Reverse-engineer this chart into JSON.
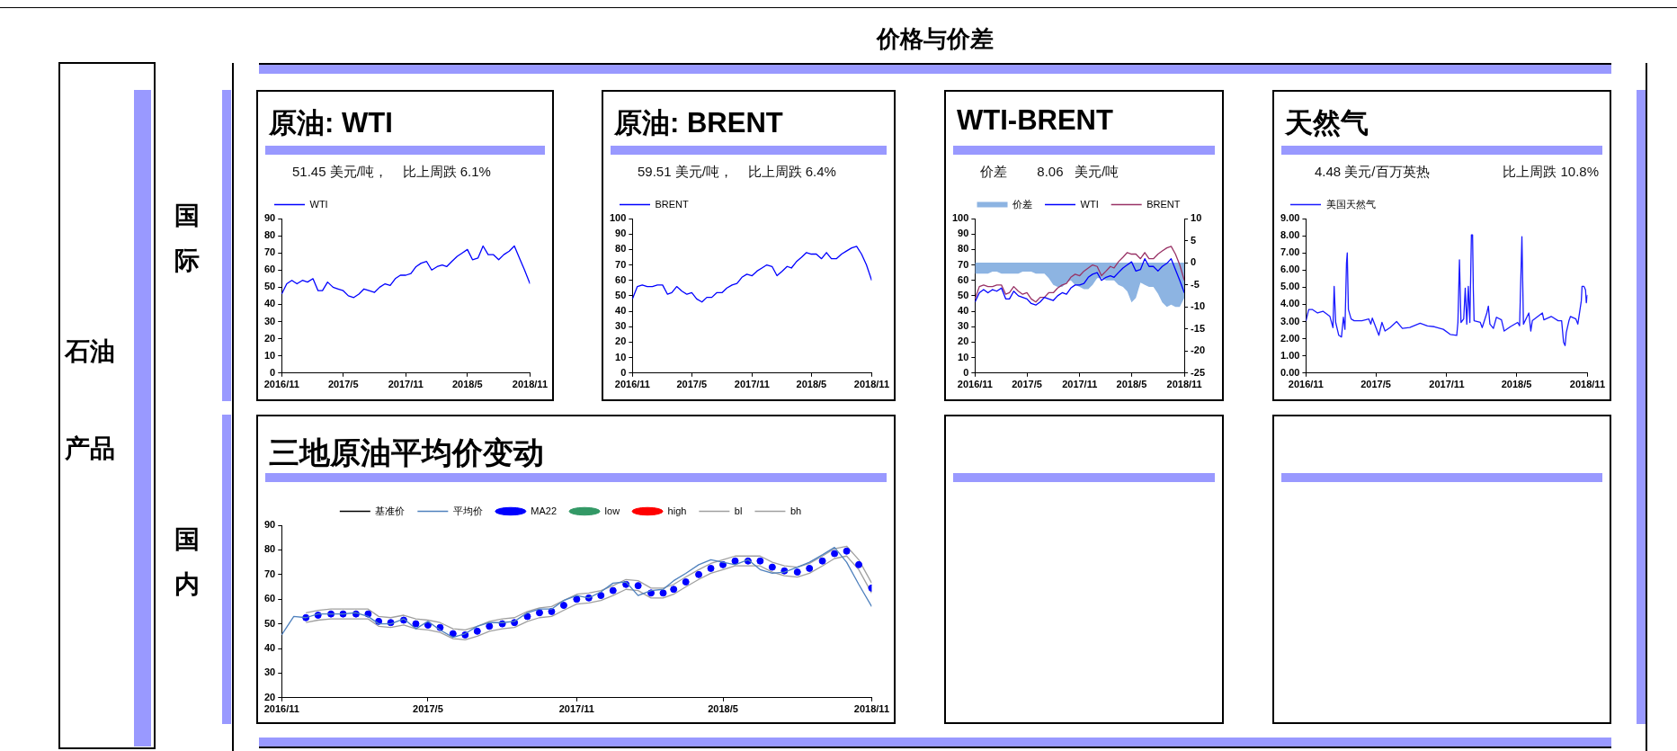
{
  "chart_data": [
    {
      "type": "other",
      "title": "价格与价差",
      "annotations": [
        "石油",
        "产品",
        "国际",
        "国内"
      ]
    },
    {
      "type": "line",
      "title": "原油: WTI",
      "subtitle": "51.45 美元/吨，    比上周跌 6.1%",
      "legend": "top left",
      "x": [
        "2016-11-01",
        "2016-11-16",
        "2016-12-01",
        "2016-12-16",
        "2017-01-01",
        "2017-01-16",
        "2017-02-01",
        "2017-02-16",
        "2017-03-01",
        "2017-03-16",
        "2017-04-01",
        "2017-04-16",
        "2017-05-01",
        "2017-05-16",
        "2017-06-01",
        "2017-06-16",
        "2017-07-01",
        "2017-07-16",
        "2017-08-01",
        "2017-08-16",
        "2017-09-01",
        "2017-09-16",
        "2017-10-01",
        "2017-10-16",
        "2017-11-01",
        "2017-11-16",
        "2017-12-01",
        "2017-12-16",
        "2018-01-01",
        "2018-01-16",
        "2018-02-01",
        "2018-02-16",
        "2018-03-01",
        "2018-03-16",
        "2018-04-01",
        "2018-04-16",
        "2018-05-01",
        "2018-05-16",
        "2018-06-01",
        "2018-06-16",
        "2018-07-01",
        "2018-07-16",
        "2018-08-01",
        "2018-08-16",
        "2018-09-01",
        "2018-09-16",
        "2018-10-01",
        "2018-10-16",
        "2018-11-01"
      ],
      "xlim": [
        "2016-11-01",
        "2018-11-01"
      ],
      "xticks": [
        {
          "value": "2016-11-01",
          "label": "2016/11"
        },
        {
          "value": "2017-05-01",
          "label": "2017/5"
        },
        {
          "value": "2017-11-01",
          "label": "2017/11"
        },
        {
          "value": "2018-05-01",
          "label": "2018/5"
        },
        {
          "value": "2018-11-01",
          "label": "2018/11"
        }
      ],
      "ylim": [
        0,
        90
      ],
      "yticks": [
        0,
        10,
        20,
        30,
        40,
        50,
        60,
        70,
        80,
        90
      ],
      "series": [
        {
          "name": "WTI",
          "color": "#0000ff",
          "values": [
            46,
            52,
            54,
            52,
            54,
            53,
            55,
            48,
            48,
            53,
            50,
            49,
            48,
            45,
            44,
            46,
            49,
            48,
            47,
            50,
            52,
            51,
            55,
            57,
            57,
            58,
            62,
            64,
            65,
            60,
            62,
            63,
            62,
            65,
            68,
            70,
            72,
            66,
            67,
            74,
            69,
            69,
            66,
            69,
            71,
            74,
            67,
            60,
            52
          ]
        }
      ]
    },
    {
      "type": "line",
      "title": "原油: BRENT",
      "subtitle": "59.51 美元/吨，    比上周跌 6.4%",
      "legend": "top left",
      "x": [
        "2016-11-01",
        "2016-11-16",
        "2016-12-01",
        "2016-12-16",
        "2017-01-01",
        "2017-01-16",
        "2017-02-01",
        "2017-02-16",
        "2017-03-01",
        "2017-03-16",
        "2017-04-01",
        "2017-04-16",
        "2017-05-01",
        "2017-05-16",
        "2017-06-01",
        "2017-06-16",
        "2017-07-01",
        "2017-07-16",
        "2017-08-01",
        "2017-08-16",
        "2017-09-01",
        "2017-09-16",
        "2017-10-01",
        "2017-10-16",
        "2017-11-01",
        "2017-11-16",
        "2017-12-01",
        "2017-12-16",
        "2018-01-01",
        "2018-01-16",
        "2018-02-01",
        "2018-02-16",
        "2018-03-01",
        "2018-03-16",
        "2018-04-01",
        "2018-04-16",
        "2018-05-01",
        "2018-05-16",
        "2018-06-01",
        "2018-06-16",
        "2018-07-01",
        "2018-07-16",
        "2018-08-01",
        "2018-08-16",
        "2018-09-01",
        "2018-09-16",
        "2018-10-01",
        "2018-10-16",
        "2018-11-01"
      ],
      "xlim": [
        "2016-11-01",
        "2018-11-01"
      ],
      "xticks": [
        {
          "value": "2016-11-01",
          "label": "2016/11"
        },
        {
          "value": "2017-05-01",
          "label": "2017/5"
        },
        {
          "value": "2017-11-01",
          "label": "2017/11"
        },
        {
          "value": "2018-05-01",
          "label": "2018/5"
        },
        {
          "value": "2018-11-01",
          "label": "2018/11"
        }
      ],
      "ylim": [
        0,
        100
      ],
      "yticks": [
        0,
        10,
        20,
        30,
        40,
        50,
        60,
        70,
        80,
        90,
        100
      ],
      "series": [
        {
          "name": "BRENT",
          "color": "#0000ff",
          "values": [
            48,
            56,
            57,
            56,
            56,
            57,
            57,
            51,
            52,
            56,
            53,
            51,
            52,
            48,
            46,
            49,
            49,
            52,
            52,
            55,
            57,
            58,
            62,
            64,
            63,
            66,
            68,
            70,
            69,
            63,
            66,
            69,
            68,
            72,
            75,
            78,
            77,
            77,
            74,
            78,
            74,
            74,
            77,
            79,
            81,
            82,
            77,
            70,
            60
          ]
        }
      ]
    },
    {
      "type": "line",
      "title": "WTI-BRENT",
      "subtitle": "价差        8.06   美元/吨",
      "legend": "top",
      "x": [
        "2016-11-01",
        "2016-11-16",
        "2016-12-01",
        "2016-12-16",
        "2017-01-01",
        "2017-01-16",
        "2017-02-01",
        "2017-02-16",
        "2017-03-01",
        "2017-03-16",
        "2017-04-01",
        "2017-04-16",
        "2017-05-01",
        "2017-05-16",
        "2017-06-01",
        "2017-06-16",
        "2017-07-01",
        "2017-07-16",
        "2017-08-01",
        "2017-08-16",
        "2017-09-01",
        "2017-09-16",
        "2017-10-01",
        "2017-10-16",
        "2017-11-01",
        "2017-11-16",
        "2017-12-01",
        "2017-12-16",
        "2018-01-01",
        "2018-01-16",
        "2018-02-01",
        "2018-02-16",
        "2018-03-01",
        "2018-03-16",
        "2018-04-01",
        "2018-04-16",
        "2018-05-01",
        "2018-05-16",
        "2018-06-01",
        "2018-06-16",
        "2018-07-01",
        "2018-07-16",
        "2018-08-01",
        "2018-08-16",
        "2018-09-01",
        "2018-09-16",
        "2018-10-01",
        "2018-10-16",
        "2018-11-01"
      ],
      "xlim": [
        "2016-11-01",
        "2018-11-01"
      ],
      "xticks": [
        {
          "value": "2016-11-01",
          "label": "2016/11"
        },
        {
          "value": "2017-05-01",
          "label": "2017/5"
        },
        {
          "value": "2017-11-01",
          "label": "2017/11"
        },
        {
          "value": "2018-05-01",
          "label": "2018/5"
        },
        {
          "value": "2018-11-01",
          "label": "2018/11"
        }
      ],
      "ylim": [
        0,
        100
      ],
      "yticks": [
        0,
        10,
        20,
        30,
        40,
        50,
        60,
        70,
        80,
        90,
        100
      ],
      "y2lim": [
        -25,
        10
      ],
      "y2ticks": [
        -25,
        -20,
        -15,
        -10,
        -5,
        0,
        5,
        10
      ],
      "series": [
        {
          "name": "价差",
          "type": "area",
          "axis": "y2",
          "color": "#8db4e2",
          "values": [
            -2.5,
            -2.5,
            -2.5,
            -2.5,
            -2,
            -2,
            -2.5,
            -2.5,
            -2.5,
            -2.5,
            -2.5,
            -2,
            -2,
            -2,
            -2.5,
            -2.5,
            -2.5,
            -3.5,
            -5,
            -5.5,
            -5.5,
            -4.5,
            -4,
            -5,
            -5.5,
            -6,
            -6,
            -5,
            -3.5,
            -3.5,
            -4,
            -4,
            -4,
            -5,
            -5.5,
            -6.5,
            -9,
            -8,
            -4.5,
            -5,
            -5.5,
            -5.5,
            -7,
            -9,
            -10,
            -9.5,
            -10,
            -10,
            -8
          ]
        },
        {
          "name": "WTI",
          "color": "#0000ff",
          "values": [
            46,
            52,
            54,
            52,
            54,
            53,
            55,
            48,
            48,
            53,
            50,
            49,
            48,
            45,
            44,
            46,
            49,
            48,
            47,
            50,
            52,
            51,
            55,
            57,
            57,
            58,
            62,
            64,
            65,
            60,
            62,
            63,
            62,
            65,
            68,
            70,
            72,
            66,
            67,
            74,
            69,
            69,
            66,
            69,
            71,
            74,
            67,
            60,
            52
          ]
        },
        {
          "name": "BRENT",
          "color": "#993366",
          "values": [
            48,
            56,
            57,
            56,
            56,
            57,
            57,
            51,
            52,
            56,
            53,
            51,
            52,
            48,
            46,
            49,
            49,
            52,
            52,
            55,
            57,
            58,
            62,
            64,
            63,
            66,
            68,
            70,
            69,
            63,
            66,
            69,
            68,
            72,
            75,
            78,
            77,
            77,
            74,
            78,
            74,
            74,
            77,
            79,
            81,
            82,
            77,
            70,
            60
          ]
        }
      ]
    },
    {
      "type": "line",
      "title": "天然气",
      "subtitle": "4.48 美元/百万英热",
      "annotations": [
        "比上周跌 10.8%"
      ],
      "legend": "top left",
      "x": [
        "2016-11-01",
        "2016-11-08",
        "2016-11-18",
        "2016-12-01",
        "2016-12-15",
        "2017-01-02",
        "2017-01-10",
        "2017-01-13",
        "2017-01-17",
        "2017-01-25",
        "2017-02-01",
        "2017-02-06",
        "2017-02-10",
        "2017-02-14",
        "2017-02-16",
        "2017-02-19",
        "2017-02-26",
        "2017-03-06",
        "2017-03-26",
        "2017-04-13",
        "2017-04-18",
        "2017-04-22",
        "2017-05-09",
        "2017-05-17",
        "2017-05-25",
        "2017-06-07",
        "2017-06-24",
        "2017-07-09",
        "2017-07-28",
        "2017-08-24",
        "2017-09-12",
        "2017-09-30",
        "2017-10-23",
        "2017-11-10",
        "2017-11-27",
        "2017-11-30",
        "2017-12-04",
        "2017-12-08",
        "2017-12-15",
        "2017-12-19",
        "2017-12-23",
        "2017-12-27",
        "2017-12-31",
        "2018-01-04",
        "2018-01-07",
        "2018-01-09",
        "2018-01-11",
        "2018-01-27",
        "2018-02-01",
        "2018-02-13",
        "2018-02-17",
        "2018-02-21",
        "2018-03-02",
        "2018-03-10",
        "2018-03-23",
        "2018-03-30",
        "2018-04-15",
        "2018-05-04",
        "2018-05-09",
        "2018-05-15",
        "2018-05-19",
        "2018-06-02",
        "2018-06-07",
        "2018-06-11",
        "2018-07-07",
        "2018-07-11",
        "2018-07-30",
        "2018-08-17",
        "2018-08-26",
        "2018-08-31",
        "2018-09-04",
        "2018-09-07",
        "2018-09-14",
        "2018-09-18",
        "2018-10-02",
        "2018-10-07",
        "2018-10-16",
        "2018-10-18",
        "2018-10-23",
        "2018-10-27",
        "2018-10-29",
        "2018-11-01"
      ],
      "xlim": [
        "2016-11-01",
        "2018-11-01"
      ],
      "xticks": [
        {
          "value": "2016-11-01",
          "label": "2016/11"
        },
        {
          "value": "2017-05-01",
          "label": "2017/5"
        },
        {
          "value": "2017-11-01",
          "label": "2017/11"
        },
        {
          "value": "2018-05-01",
          "label": "2018/5"
        },
        {
          "value": "2018-11-01",
          "label": "2018/11"
        }
      ],
      "ylim": [
        0,
        9
      ],
      "yticks": [
        {
          "value": 0,
          "label": "0.00"
        },
        {
          "value": 1,
          "label": "1.00"
        },
        {
          "value": 2,
          "label": "2.00"
        },
        {
          "value": 3,
          "label": "3.00"
        },
        {
          "value": 4,
          "label": "4.00"
        },
        {
          "value": 5,
          "label": "5.00"
        },
        {
          "value": 6,
          "label": "6.00"
        },
        {
          "value": 7,
          "label": "7.00"
        },
        {
          "value": 8,
          "label": "8.00"
        },
        {
          "value": 9,
          "label": "9.00"
        }
      ],
      "series": [
        {
          "name": "美国天然气",
          "color": "#1a1aff",
          "values": [
            3.05,
            3.7,
            3.7,
            3.5,
            3.6,
            3.3,
            2.65,
            5.05,
            2.95,
            2.2,
            2.1,
            3.25,
            2.55,
            6.4,
            7.0,
            3.7,
            3.15,
            3.05,
            3.05,
            3.15,
            2.85,
            3.2,
            2.2,
            2.95,
            2.45,
            2.65,
            3.0,
            2.6,
            2.65,
            2.9,
            2.75,
            2.7,
            2.55,
            2.25,
            2.2,
            2.95,
            6.6,
            2.95,
            3.15,
            4.95,
            2.85,
            5.05,
            2.95,
            8.05,
            8.05,
            4.85,
            3.05,
            2.95,
            2.65,
            3.5,
            3.9,
            2.85,
            2.6,
            3.25,
            3.1,
            2.45,
            2.7,
            2.95,
            2.75,
            7.95,
            2.85,
            3.5,
            2.45,
            3.05,
            3.5,
            3.1,
            3.3,
            3.05,
            3.05,
            1.8,
            1.6,
            2.35,
            3.05,
            3.3,
            3.15,
            2.85,
            4.2,
            5.05,
            5.05,
            4.85,
            4.1,
            4.55
          ]
        }
      ]
    },
    {
      "type": "line",
      "title": "三地原油平均价变动",
      "legend": "top",
      "x": [
        "2016-11-01",
        "2016-11-16",
        "2016-12-01",
        "2016-12-16",
        "2017-01-01",
        "2017-01-16",
        "2017-02-01",
        "2017-02-16",
        "2017-03-01",
        "2017-03-16",
        "2017-04-01",
        "2017-04-16",
        "2017-05-01",
        "2017-05-16",
        "2017-06-01",
        "2017-06-16",
        "2017-07-01",
        "2017-07-16",
        "2017-08-01",
        "2017-08-16",
        "2017-09-01",
        "2017-09-16",
        "2017-10-01",
        "2017-10-16",
        "2017-11-01",
        "2017-11-16",
        "2017-12-01",
        "2017-12-16",
        "2018-01-01",
        "2018-01-16",
        "2018-02-01",
        "2018-02-16",
        "2018-03-01",
        "2018-03-16",
        "2018-04-01",
        "2018-04-16",
        "2018-05-01",
        "2018-05-16",
        "2018-06-01",
        "2018-06-16",
        "2018-07-01",
        "2018-07-16",
        "2018-08-01",
        "2018-08-16",
        "2018-09-01",
        "2018-09-16",
        "2018-10-01",
        "2018-10-16",
        "2018-11-01"
      ],
      "xlim": [
        "2016-11-01",
        "2018-11-01"
      ],
      "xticks": [
        {
          "value": "2016-11-01",
          "label": "2016/11"
        },
        {
          "value": "2017-05-01",
          "label": "2017/5"
        },
        {
          "value": "2017-11-01",
          "label": "2017/11"
        },
        {
          "value": "2018-05-01",
          "label": "2018/5"
        },
        {
          "value": "2018-11-01",
          "label": "2018/11"
        }
      ],
      "ylim": [
        20,
        90
      ],
      "yticks": [
        20,
        30,
        40,
        50,
        60,
        70,
        80,
        90
      ],
      "series": [
        {
          "name": "基准价",
          "color": "#000000",
          "values": [
            null,
            null,
            null,
            null,
            null,
            null,
            null,
            null,
            null,
            null,
            null,
            null,
            null,
            null,
            null,
            null,
            null,
            null,
            null,
            null,
            null,
            null,
            null,
            null,
            null,
            null,
            null,
            null,
            null,
            null,
            null,
            null,
            null,
            null,
            null,
            null,
            null,
            null,
            null,
            null,
            null,
            null,
            null,
            null,
            null,
            null,
            null,
            null,
            null
          ]
        },
        {
          "name": "平均价",
          "color": "#4f81bd",
          "values": [
            45.5,
            53,
            52.5,
            54,
            54,
            54,
            54.5,
            53,
            50,
            50,
            52,
            48,
            51,
            47.5,
            44.5,
            46,
            49,
            50.5,
            50.5,
            51,
            54.5,
            56,
            56,
            59.5,
            61.5,
            60.5,
            63,
            66.5,
            67,
            61.5,
            63.5,
            64,
            67.5,
            70.5,
            74,
            76,
            75,
            74,
            76,
            72,
            70.5,
            71,
            73,
            75,
            78,
            81,
            75,
            66,
            57
          ]
        },
        {
          "name": "MA22",
          "type": "scatter",
          "marker": "circle",
          "color": "#0000ff",
          "values": [
            null,
            null,
            52.5,
            53.5,
            54,
            54,
            54,
            54,
            51,
            50.5,
            51.5,
            50,
            49.5,
            48.5,
            46,
            45.5,
            47,
            49,
            50,
            50.5,
            53,
            54.5,
            55,
            57.5,
            60,
            60.5,
            61.5,
            63.5,
            66,
            65.5,
            62.5,
            62.5,
            64,
            67,
            70,
            72.5,
            74,
            75.5,
            75.5,
            75.5,
            73,
            71.5,
            71,
            72.5,
            75.5,
            78.5,
            79.5,
            74,
            64.5
          ]
        },
        {
          "name": "low",
          "type": "scatter",
          "marker": "circle",
          "color": "#339966",
          "values": [
            null,
            null,
            null,
            null,
            null,
            null,
            null,
            null,
            null,
            null,
            null,
            null,
            null,
            null,
            null,
            null,
            null,
            null,
            null,
            null,
            null,
            null,
            null,
            null,
            null,
            null,
            null,
            null,
            null,
            null,
            null,
            null,
            null,
            null,
            null,
            null,
            null,
            null,
            null,
            null,
            null,
            null,
            null,
            null,
            null,
            null,
            null,
            null,
            null
          ]
        },
        {
          "name": "high",
          "type": "scatter",
          "marker": "circle",
          "color": "#ff0000",
          "values": [
            null,
            null,
            null,
            null,
            null,
            null,
            null,
            null,
            null,
            null,
            null,
            null,
            null,
            null,
            null,
            null,
            null,
            null,
            null,
            null,
            null,
            null,
            null,
            null,
            null,
            null,
            null,
            null,
            null,
            null,
            null,
            null,
            null,
            null,
            null,
            null,
            null,
            null,
            null,
            null,
            null,
            null,
            null,
            null,
            null,
            null,
            null,
            null,
            null
          ]
        },
        {
          "name": "bl",
          "color": "#a0a0a0",
          "values": [
            null,
            null,
            50.5,
            51.5,
            52,
            52,
            52,
            52,
            49,
            48.5,
            49.5,
            48,
            47.5,
            46.5,
            44,
            43.5,
            45,
            47,
            48,
            48.5,
            51,
            52.5,
            53,
            55.5,
            58,
            58.5,
            59.5,
            61.5,
            64,
            63.5,
            60.5,
            60.5,
            62,
            65,
            68,
            70.5,
            72,
            73.5,
            73.5,
            73.5,
            71,
            69.5,
            69,
            70.5,
            73.5,
            76.5,
            77.5,
            72,
            62.5
          ]
        },
        {
          "name": "bh",
          "color": "#a0a0a0",
          "values": [
            null,
            null,
            54.5,
            55.5,
            56,
            56,
            56,
            56,
            53,
            52.5,
            53.5,
            52,
            51.5,
            50.5,
            48,
            47.5,
            49,
            51,
            52,
            52.5,
            55,
            56.5,
            57,
            59.5,
            62,
            62.5,
            63.5,
            65.5,
            68,
            67.5,
            64.5,
            64.5,
            66,
            69,
            72,
            74.5,
            76,
            77.5,
            77.5,
            77.5,
            75,
            73.5,
            73,
            74.5,
            77.5,
            80.5,
            81.5,
            76,
            66.5
          ]
        }
      ]
    }
  ]
}
